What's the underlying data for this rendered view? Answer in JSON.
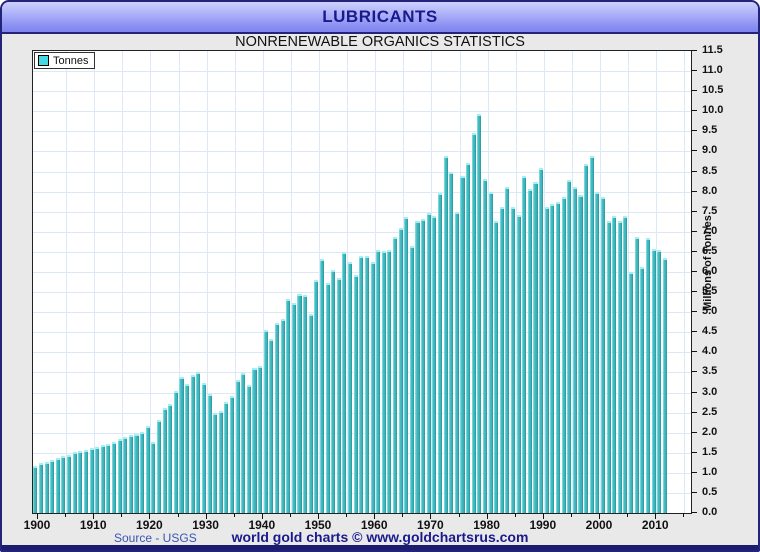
{
  "window": {
    "title": "LUBRICANTS",
    "subtitle": "NONRENEWABLE ORGANICS STATISTICS"
  },
  "legend": {
    "label": "Tonnes",
    "swatch_color": "#45d9e4"
  },
  "footer": {
    "source": "Source - USGS",
    "credit": "world gold charts © www.goldchartsrus.com"
  },
  "colors": {
    "titlebar_top": "#cdd0fd",
    "titlebar_bottom": "#7e84ef",
    "title_text": "#1a1a8c",
    "chrome_gray": "#e9e9e9",
    "navy_strip": "#1b1b70",
    "grid": "#dce8f5",
    "bar_highlight": "#8ae6e9",
    "bar_body": "#3fb6bd",
    "bar_shadow": "#28939c",
    "bar_cap": "#a2f0f2",
    "source_text": "#3a55b4",
    "credit_text": "#1a1a8c"
  },
  "chart_data": {
    "type": "bar",
    "title": "LUBRICANTS",
    "subtitle": "NONRENEWABLE ORGANICS STATISTICS",
    "series_name": "Tonnes",
    "ylabel": "Millions of Tonnes",
    "ylim": [
      0.0,
      11.5
    ],
    "y_step": 0.5,
    "grid": true,
    "legend_position": "top-left",
    "x_start": 1900,
    "x_end": 2012,
    "y_ticks": [
      "0.0",
      "0.5",
      "1.0",
      "1.5",
      "2.0",
      "2.5",
      "3.0",
      "3.5",
      "4.0",
      "4.5",
      "5.0",
      "5.5",
      "6.0",
      "6.5",
      "7.0",
      "7.5",
      "8.0",
      "8.5",
      "9.0",
      "9.5",
      "10.0",
      "10.5",
      "11.0",
      "11.5"
    ],
    "x_ticks": [
      "1900",
      "1910",
      "1920",
      "1930",
      "1940",
      "1950",
      "1960",
      "1970",
      "1980",
      "1990",
      "2000",
      "2010"
    ],
    "values": [
      1.13,
      1.19,
      1.23,
      1.28,
      1.31,
      1.38,
      1.4,
      1.47,
      1.49,
      1.52,
      1.56,
      1.6,
      1.65,
      1.68,
      1.72,
      1.79,
      1.85,
      1.9,
      1.93,
      1.98,
      2.12,
      1.73,
      2.26,
      2.57,
      2.67,
      2.98,
      3.33,
      3.17,
      3.39,
      3.47,
      3.19,
      2.92,
      2.44,
      2.49,
      2.72,
      2.86,
      3.27,
      3.43,
      3.13,
      3.55,
      3.6,
      4.5,
      4.28,
      4.67,
      4.77,
      5.27,
      5.19,
      5.41,
      5.37,
      4.9,
      5.76,
      6.28,
      5.67,
      6.01,
      5.8,
      6.45,
      6.2,
      5.87,
      6.35,
      6.35,
      6.2,
      6.5,
      6.48,
      6.5,
      6.83,
      7.04,
      7.33,
      6.6,
      7.22,
      7.27,
      7.41,
      7.35,
      7.92,
      8.83,
      8.45,
      7.45,
      8.35,
      8.67,
      9.42,
      9.88,
      8.26,
      7.93,
      7.22,
      7.56,
      8.07,
      7.56,
      7.37,
      8.34,
      8.02,
      8.19,
      8.53,
      7.58,
      7.65,
      7.69,
      7.82,
      8.23,
      8.07,
      7.86,
      8.63,
      8.85,
      7.94,
      7.82,
      7.21,
      7.35,
      7.22,
      7.35,
      5.94,
      6.81,
      6.07,
      6.79,
      6.52,
      6.51,
      6.3
    ]
  }
}
